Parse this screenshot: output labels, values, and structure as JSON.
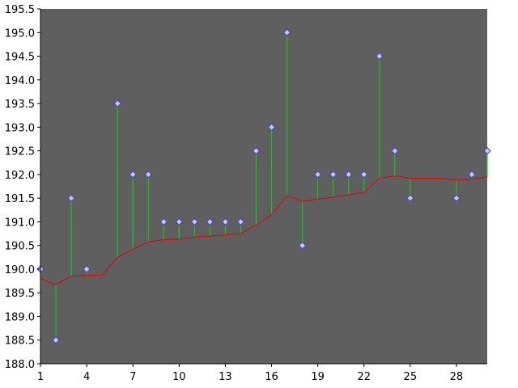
{
  "chart_data": {
    "type": "scatter",
    "title": "",
    "xlabel": "",
    "ylabel": "",
    "xlim": [
      1,
      30
    ],
    "ylim": [
      188.0,
      195.5
    ],
    "grid": false,
    "legend": "none",
    "x_ticks": [
      "1",
      "4",
      "7",
      "10",
      "13",
      "16",
      "19",
      "22",
      "25",
      "28"
    ],
    "y_ticks": [
      "188.0",
      "188.5",
      "189.0",
      "189.5",
      "190.0",
      "190.5",
      "191.0",
      "191.5",
      "192.0",
      "192.5",
      "193.0",
      "193.5",
      "194.0",
      "194.5",
      "195.0",
      "195.5"
    ],
    "series": [
      {
        "name": "",
        "kind": "points",
        "x": [
          1,
          2,
          3,
          4,
          6,
          7,
          8,
          9,
          10,
          11,
          12,
          13,
          14,
          15,
          16,
          17,
          18,
          19,
          20,
          21,
          22,
          23,
          24,
          25,
          28,
          29,
          30
        ],
        "y": [
          190.0,
          188.5,
          191.5,
          190.0,
          193.5,
          192.0,
          192.0,
          191.0,
          191.0,
          191.0,
          191.0,
          191.0,
          191.0,
          192.5,
          193.0,
          195.0,
          190.5,
          192.0,
          192.0,
          192.0,
          192.0,
          194.5,
          192.5,
          191.5,
          191.5,
          192.0,
          192.5
        ]
      },
      {
        "name": "",
        "kind": "line",
        "x": [
          1,
          2,
          3,
          4,
          5,
          6,
          7,
          8,
          9,
          10,
          11,
          12,
          13,
          14,
          15,
          16,
          17,
          18,
          19,
          20,
          21,
          22,
          23,
          24,
          25,
          26,
          27,
          28,
          29,
          30
        ],
        "y": [
          189.8,
          189.67,
          189.85,
          189.87,
          189.87,
          190.25,
          190.42,
          190.58,
          190.62,
          190.63,
          190.68,
          190.7,
          190.72,
          190.75,
          190.93,
          191.15,
          191.55,
          191.43,
          191.48,
          191.52,
          191.57,
          191.62,
          191.92,
          191.97,
          191.92,
          191.92,
          191.92,
          191.88,
          191.9,
          191.95
        ]
      }
    ],
    "colors": {
      "plot_background": "#5f5f5f",
      "points_fill": "#c8c8ff",
      "points_stroke": "#4040c8",
      "line": "#e00000",
      "stems": "#00e000"
    }
  }
}
